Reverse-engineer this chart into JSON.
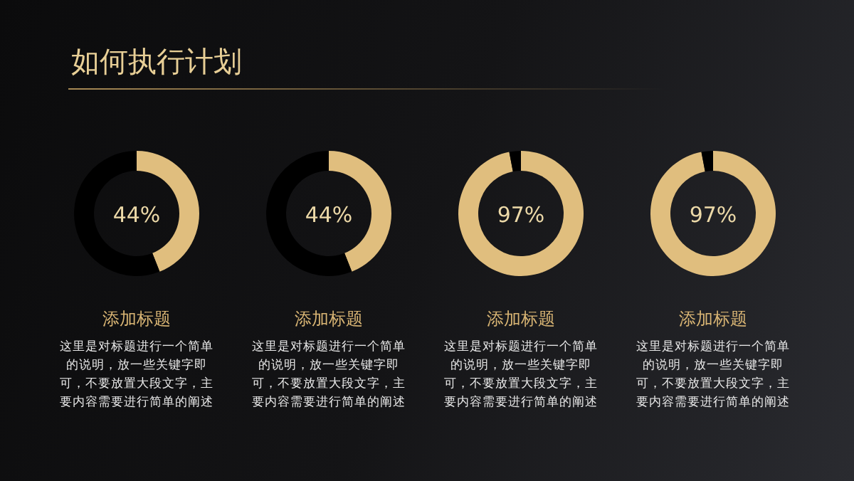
{
  "chart_data": [
    {
      "type": "other",
      "title": "如何执行计划"
    },
    {
      "type": "donut",
      "title": "添加标题",
      "categories": [
        null,
        null
      ],
      "values": [
        44,
        56
      ],
      "colors": [
        "#e0be7e",
        "#000000"
      ],
      "annotations": [
        "44%",
        "这里是对标题进行一个简单的说明，放一些关键字即可，不要放置大段文字，主要内容需要进行简单的阐述"
      ]
    },
    {
      "type": "donut",
      "title": "添加标题",
      "categories": [
        null,
        null
      ],
      "values": [
        44,
        56
      ],
      "colors": [
        "#e0be7e",
        "#000000"
      ],
      "annotations": [
        "44%",
        "这里是对标题进行一个简单的说明，放一些关键字即可，不要放置大段文字，主要内容需要进行简单的阐述"
      ]
    },
    {
      "type": "donut",
      "title": "添加标题",
      "categories": [
        null,
        null
      ],
      "values": [
        97,
        3
      ],
      "colors": [
        "#e0be7e",
        "#000000"
      ],
      "annotations": [
        "97%",
        "这里是对标题进行一个简单的说明，放一些关键字即可，不要放置大段文字，主要内容需要进行简单的阐述"
      ]
    },
    {
      "type": "donut",
      "title": "添加标题",
      "categories": [
        null,
        null
      ],
      "values": [
        97,
        3
      ],
      "colors": [
        "#e0be7e",
        "#000000"
      ],
      "annotations": [
        "97%",
        "这里是对标题进行一个简单的说明，放一些关键字即可，不要放置大段文字，主要内容需要进行简单的阐述"
      ]
    }
  ]
}
